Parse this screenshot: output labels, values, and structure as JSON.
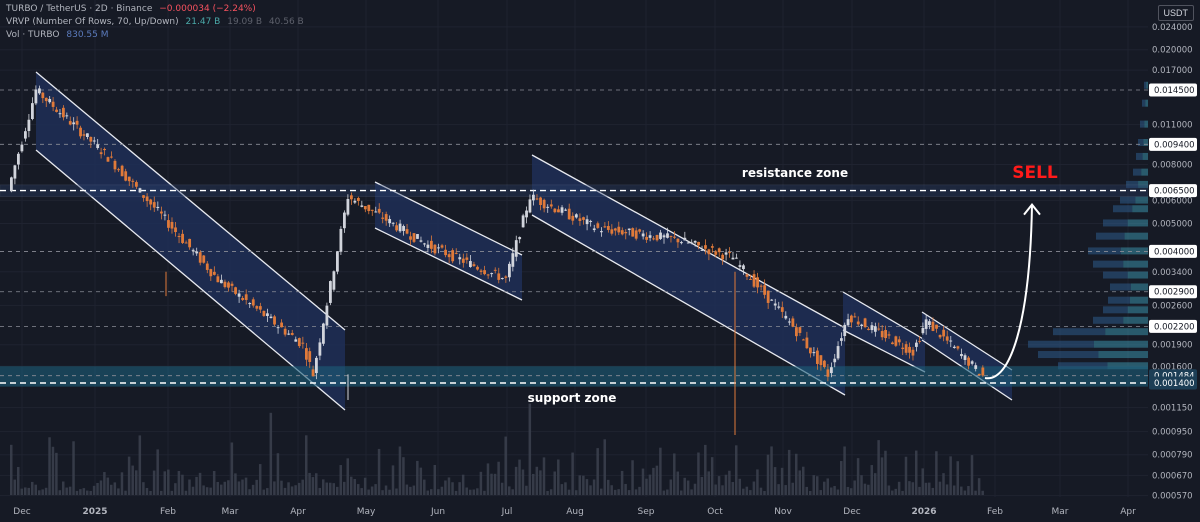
{
  "header": {
    "symbol": "TURBO / TetherUS · 2D · Binance",
    "change": "−0.000034 (−2.24%)",
    "vrvp_label": "VRVP (Number Of Rows, 70, Up/Down)",
    "vrvp_up": "21.47 B",
    "vrvp_down": "19.09 B",
    "vrvp_total": "40.56 B",
    "vol_label": "Vol · TURBO",
    "vol_value": "830.55 M",
    "currency": "USDT"
  },
  "annotations": {
    "resistance": "resistance zone",
    "support": "support zone",
    "sell": "SELL"
  },
  "colors": {
    "background": "#161a25",
    "up": "#d1d4dc",
    "down": "#e07a3a",
    "channel_fill": "#1e2f57",
    "zone": "#1d5d7a",
    "sell": "#ff1a1a"
  },
  "chart_data": {
    "type": "candlestick",
    "y_scale": "log",
    "ylim": [
      0.00052,
      0.026
    ],
    "x_tick_labels": [
      "Dec",
      "2025",
      "Feb",
      "Mar",
      "Apr",
      "May",
      "Jun",
      "Jul",
      "Aug",
      "Sep",
      "Oct",
      "Nov",
      "Dec",
      "2026",
      "Feb",
      "Mar",
      "Apr"
    ],
    "y_tick_labels": [
      0.024,
      0.02,
      0.017,
      0.011,
      0.008,
      0.006,
      0.005,
      0.0034,
      0.0026,
      0.0019,
      0.0016,
      0.00115,
      0.00095,
      0.00079,
      0.00067,
      0.00057
    ],
    "y_tick_labels_text": [
      "0.024000",
      "0.020000",
      "0.017000",
      "0.011000",
      "0.008000",
      "0.006000",
      "0.005000",
      "0.003400",
      "0.002600",
      "0.001900",
      "0.001600",
      "0.001150",
      "0.000950",
      "0.000790",
      "0.000670",
      "0.000570"
    ],
    "price_levels": [
      {
        "value": 0.0145,
        "label": "0.014500"
      },
      {
        "value": 0.0094,
        "label": "0.009400"
      },
      {
        "value": 0.0065,
        "label": "0.006500"
      },
      {
        "value": 0.004,
        "label": "0.004000"
      },
      {
        "value": 0.0029,
        "label": "0.002900"
      },
      {
        "value": 0.0022,
        "label": "0.002200"
      },
      {
        "value": 0.001484,
        "label": "0.001484"
      },
      {
        "value": 0.0014,
        "label": "0.001400"
      }
    ],
    "path_key_points": [
      [
        "Dec 2024",
        0.0065
      ],
      [
        "Dec 2024",
        0.0145
      ],
      [
        "2025",
        0.0085
      ],
      [
        "Feb",
        0.0055
      ],
      [
        "Mar",
        0.0032
      ],
      [
        "Apr",
        0.0019
      ],
      [
        "Apr",
        0.0015
      ],
      [
        "May",
        0.0062
      ],
      [
        "Jun",
        0.0042
      ],
      [
        "Jul",
        0.0032
      ],
      [
        "Jul",
        0.0062
      ],
      [
        "Aug",
        0.0048
      ],
      [
        "Sep",
        0.0044
      ],
      [
        "Oct",
        0.0038
      ],
      [
        "Nov",
        0.0022
      ],
      [
        "Dec",
        0.0015
      ],
      [
        "Dec",
        0.0024
      ],
      [
        "2026",
        0.0018
      ],
      [
        "2026",
        0.0023
      ],
      [
        "Feb",
        0.001484
      ]
    ],
    "projection": {
      "from": 0.0014,
      "to": 0.0065
    }
  }
}
